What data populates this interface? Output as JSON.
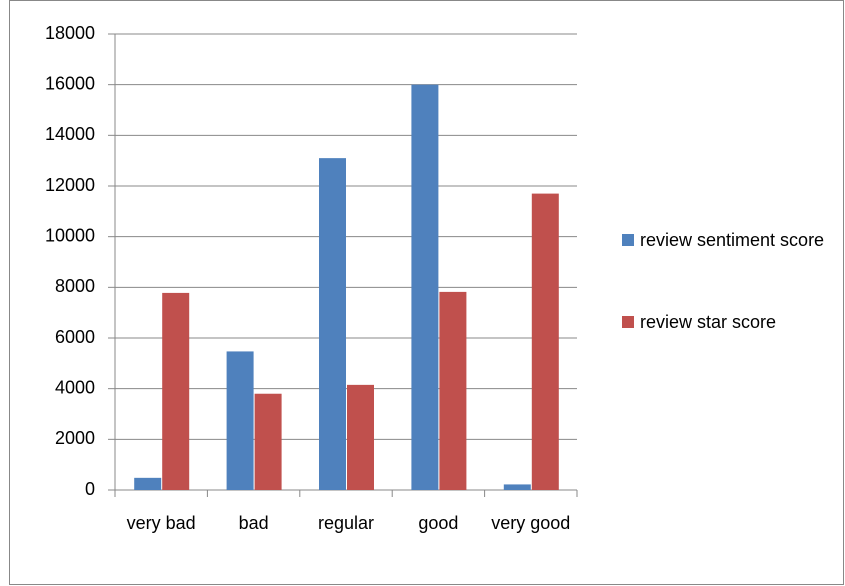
{
  "chart_data": {
    "type": "bar",
    "categories": [
      "very bad",
      "bad",
      "regular",
      "good",
      "very good"
    ],
    "series": [
      {
        "name": "review sentiment score",
        "color": "#4f81bd",
        "values": [
          480,
          5470,
          13100,
          16000,
          220
        ]
      },
      {
        "name": "review star score",
        "color": "#c0504d",
        "values": [
          7780,
          3800,
          4150,
          7820,
          11700
        ]
      }
    ],
    "ylim": [
      0,
      18000
    ],
    "yticks": [
      0,
      2000,
      4000,
      6000,
      8000,
      10000,
      12000,
      14000,
      16000,
      18000
    ],
    "grid": true,
    "legend": "right"
  }
}
